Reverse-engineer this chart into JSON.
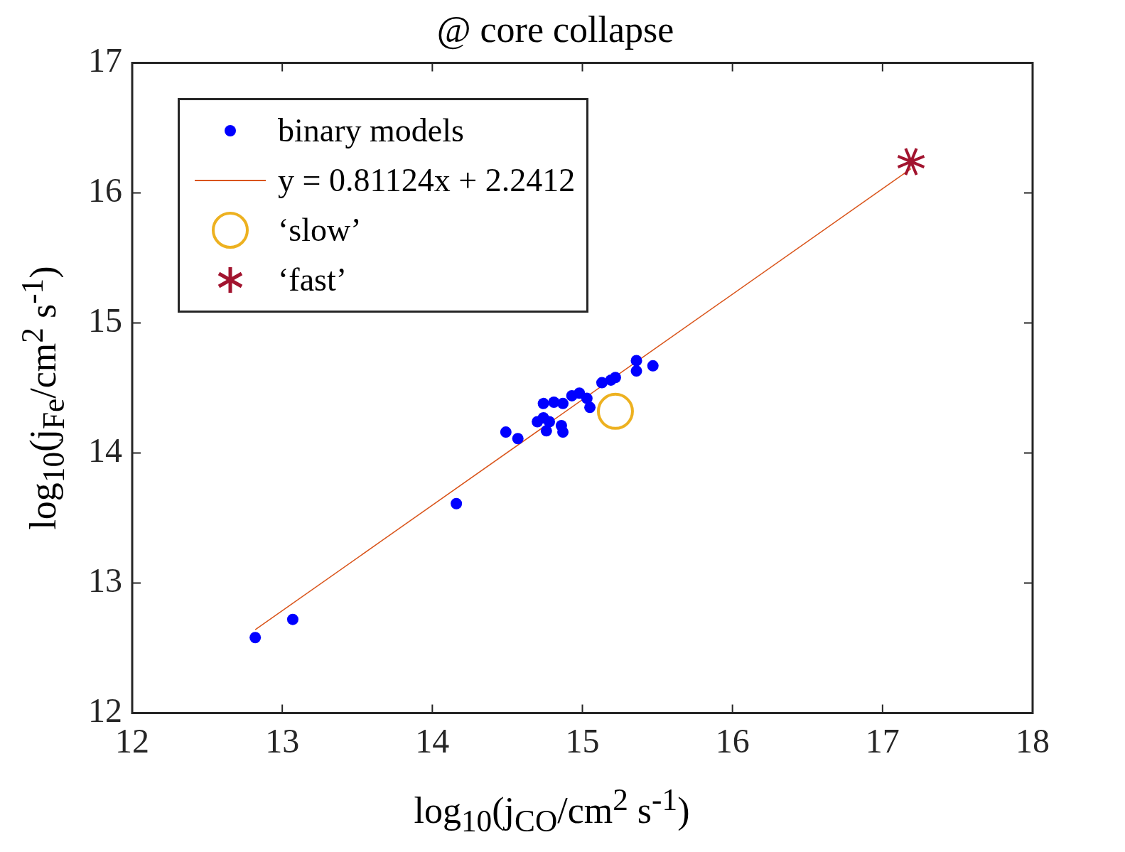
{
  "chart_data": {
    "type": "scatter",
    "title": "@ core collapse",
    "xlabel": "log$_{10}$(j$_{CO}$/cm$^{2}$ s$^{-1}$)",
    "ylabel": "log$_{10}$(j$_{Fe}$/cm$^{2}$ s$^{-1}$)",
    "xlim": [
      12,
      18
    ],
    "xticks": [
      12,
      13,
      14,
      15,
      16,
      17,
      18
    ],
    "ylim": [
      12,
      17
    ],
    "yticks": [
      12,
      13,
      14,
      15,
      16,
      17
    ],
    "grid": false,
    "legend": "top left",
    "series": [
      {
        "name": "binary models",
        "marker": "circle",
        "color": "#0000ff",
        "x": [
          12.82,
          13.07,
          14.16,
          14.49,
          14.57,
          14.7,
          14.74,
          14.76,
          14.74,
          14.81,
          14.87,
          14.78,
          14.86,
          14.87,
          14.93,
          14.98,
          15.03,
          15.05,
          15.13,
          15.19,
          15.22,
          15.36,
          15.36,
          15.47
        ],
        "values": [
          12.58,
          12.72,
          13.61,
          14.16,
          14.11,
          14.24,
          14.27,
          14.17,
          14.38,
          14.39,
          14.38,
          14.24,
          14.21,
          14.16,
          14.44,
          14.46,
          14.42,
          14.35,
          14.54,
          14.56,
          14.58,
          14.71,
          14.63,
          14.67
        ]
      },
      {
        "name": "y = 0.81124x + 2.2412",
        "type": "line",
        "marker": "none",
        "line_style": "solid",
        "color": "#d95319",
        "x": [
          12.82,
          17.19
        ],
        "values": [
          12.641,
          16.186
        ]
      },
      {
        "name": "‘slow’",
        "marker": "circle",
        "color": "#edb120",
        "x": [
          15.22
        ],
        "values": [
          14.32
        ]
      },
      {
        "name": "‘fast’",
        "marker": "cross",
        "color": "#a2142f",
        "x": [
          17.19
        ],
        "values": [
          16.24
        ]
      }
    ]
  }
}
